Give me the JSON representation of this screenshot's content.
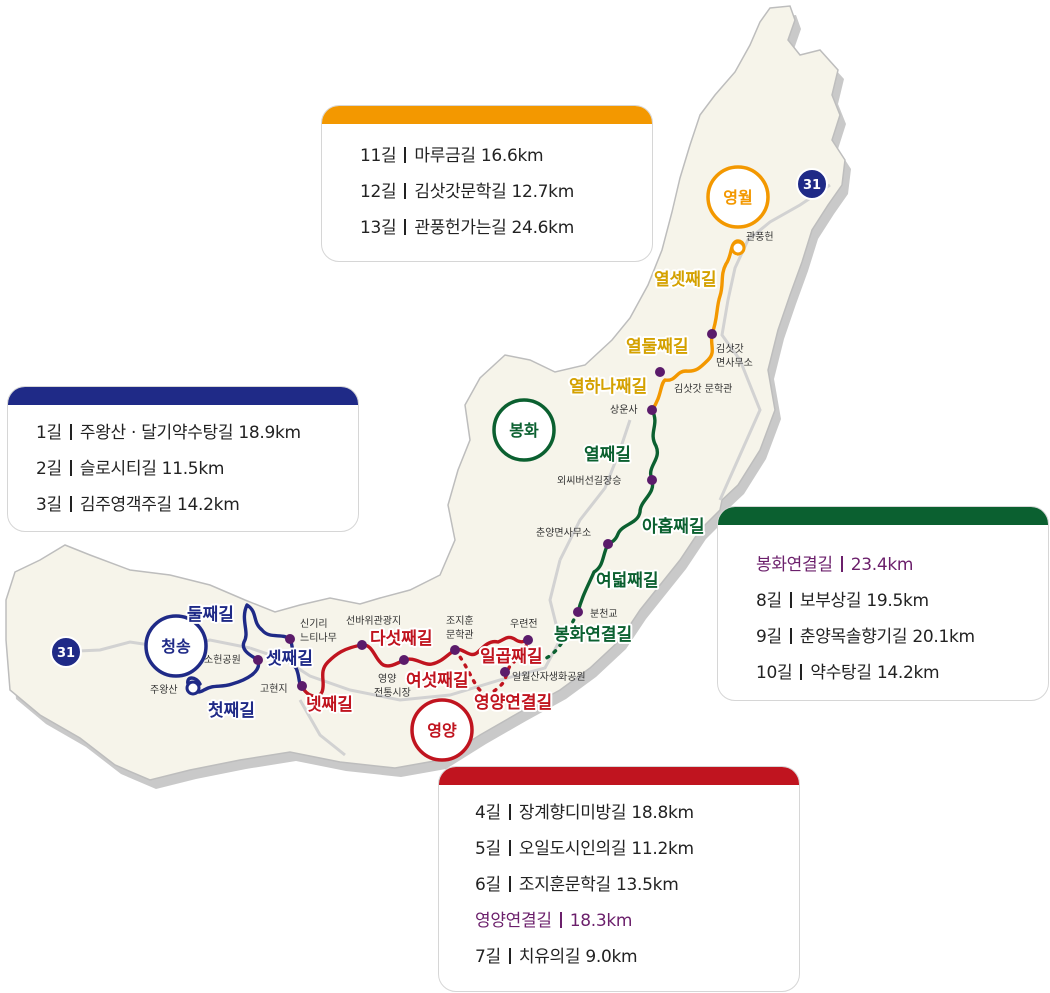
{
  "colors": {
    "yeongwol": "#f39800",
    "bonghwa": "#0b6030",
    "cheongsong": "#1f2a87",
    "yeongyang": "#c0141f",
    "highlight": "#6b1f6b",
    "land": "#f6f4ea",
    "shadow": "#c9c9c9",
    "road": "#d2d2d2",
    "stop_dot": "#5b1b6b"
  },
  "regions": {
    "yeongwol": "영월",
    "bonghwa": "봉화",
    "cheongsong": "청송",
    "yeongyang": "영양"
  },
  "highways": [
    {
      "id": "north",
      "label": "31"
    },
    {
      "id": "west",
      "label": "31"
    }
  ],
  "route_labels": {
    "yeol_set": "열셋째길",
    "yeol_dul": "열둘째길",
    "yeol_hana": "열하나째길",
    "yeol": "열째길",
    "ahop": "아홉째길",
    "yeodeol": "여덟째길",
    "bonghwa_link": "봉화연결길",
    "dul": "둘째길",
    "set": "셋째길",
    "cheot": "첫째길",
    "net": "넷째길",
    "daseot": "다섯째길",
    "yeoseot": "여섯째길",
    "ilgop": "일곱째길",
    "yeongyang_link": "영양연결길"
  },
  "stops": {
    "gwanpung": "관풍헌",
    "gimsatgat_office_1": "김삿갓",
    "gimsatgat_office_2": "면사무소",
    "gimsatgat_museum": "김삿갓 문학관",
    "sangun": "상운사",
    "oessi": "외씨버선길장승",
    "chunyang": "춘양면사무소",
    "buncheon": "분천교",
    "singiri_1": "신기리",
    "singiri_2": "느티나무",
    "sohyeon": "소헌공원",
    "juwang": "주왕산",
    "gohyeonji": "고현지",
    "seonbawi": "선바위관광지",
    "jojihun_1": "조지훈",
    "jojihun_2": "문학관",
    "market_1": "영양",
    "market_2": "전통시장",
    "uryeonjeon": "우련전",
    "ilwolsan": "일월산자생화공원"
  },
  "cards": {
    "yeongwol": {
      "items": [
        {
          "num": "11길",
          "name": "마루금길",
          "dist": "16.6km"
        },
        {
          "num": "12길",
          "name": "김삿갓문학길",
          "dist": "12.7km"
        },
        {
          "num": "13길",
          "name": "관풍헌가는길",
          "dist": "24.6km"
        }
      ]
    },
    "cheongsong": {
      "items": [
        {
          "num": "1길",
          "name": "주왕산 · 달기약수탕길",
          "dist": "18.9km"
        },
        {
          "num": "2길",
          "name": "슬로시티길",
          "dist": "11.5km"
        },
        {
          "num": "3길",
          "name": "김주영객주길",
          "dist": "14.2km"
        }
      ]
    },
    "bonghwa": {
      "items": [
        {
          "num": "봉화연결길",
          "name": "",
          "dist": "23.4km",
          "highlight": true
        },
        {
          "num": "8길",
          "name": "보부상길",
          "dist": "19.5km"
        },
        {
          "num": "9길",
          "name": "춘양목솔향기길",
          "dist": "20.1km"
        },
        {
          "num": "10길",
          "name": "약수탕길",
          "dist": "14.2km"
        }
      ]
    },
    "yeongyang": {
      "items": [
        {
          "num": "4길",
          "name": "장계향디미방길",
          "dist": "18.8km"
        },
        {
          "num": "5길",
          "name": "오일도시인의길",
          "dist": "11.2km"
        },
        {
          "num": "6길",
          "name": "조지훈문학길",
          "dist": "13.5km"
        },
        {
          "num": "영양연결길",
          "name": "",
          "dist": "18.3km",
          "highlight": true
        },
        {
          "num": "7길",
          "name": "치유의길",
          "dist": "9.0km"
        }
      ]
    }
  }
}
